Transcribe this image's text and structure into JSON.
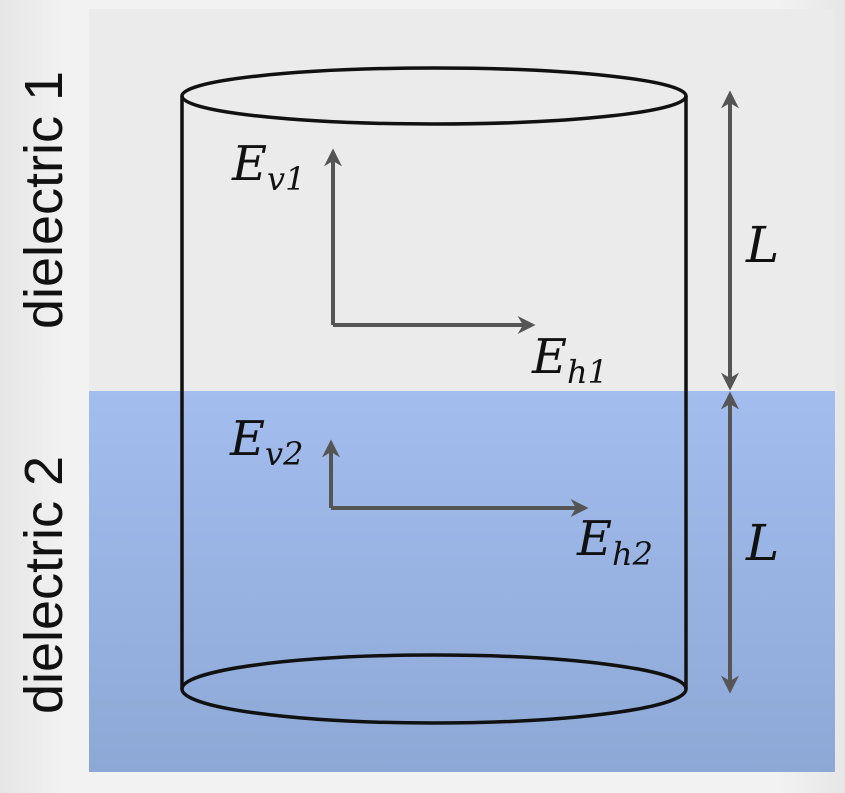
{
  "labels": {
    "region_top": "dielectric 1",
    "region_bottom": "dielectric 2",
    "length_top": "L",
    "length_bottom": "L"
  },
  "vectors": {
    "ev1": {
      "base": "E",
      "sub": "v1"
    },
    "eh1": {
      "base": "E",
      "sub": "h1"
    },
    "ev2": {
      "base": "E",
      "sub": "v2"
    },
    "eh2": {
      "base": "E",
      "sub": "h2"
    }
  },
  "colors": {
    "dielectric1_fill": "#ebebeb",
    "dielectric2_top": "#a2bdee",
    "dielectric2_bottom": "#8ea8d6",
    "arrow": "#555555",
    "outline": "#111111"
  }
}
